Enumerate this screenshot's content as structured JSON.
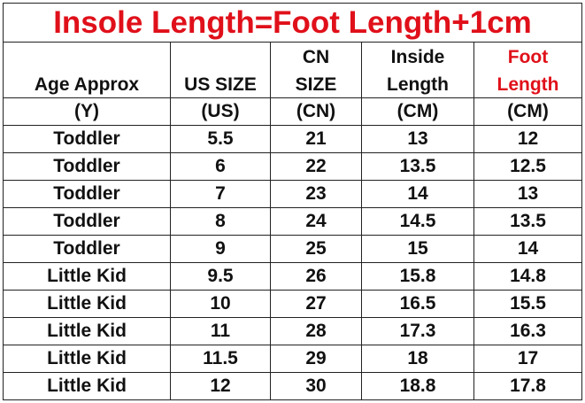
{
  "title": "Insole Length=Foot Length+1cm",
  "headers": [
    {
      "line1": "",
      "line2": "Age Approx",
      "unit": "(Y)"
    },
    {
      "line1": "",
      "line2": "US SIZE",
      "unit": "(US)"
    },
    {
      "line1": "CN",
      "line2": "SIZE",
      "unit": "(CN)"
    },
    {
      "line1": "Inside",
      "line2": "Length",
      "unit": "(CM)"
    },
    {
      "line1": "Foot",
      "line2": "Length",
      "unit": "(CM)"
    }
  ],
  "accent_color": "#e0101a",
  "rows": [
    [
      "Toddler",
      "5.5",
      "21",
      "13",
      "12"
    ],
    [
      "Toddler",
      "6",
      "22",
      "13.5",
      "12.5"
    ],
    [
      "Toddler",
      "7",
      "23",
      "14",
      "13"
    ],
    [
      "Toddler",
      "8",
      "24",
      "14.5",
      "13.5"
    ],
    [
      "Toddler",
      "9",
      "25",
      "15",
      "14"
    ],
    [
      "Little Kid",
      "9.5",
      "26",
      "15.8",
      "14.8"
    ],
    [
      "Little Kid",
      "10",
      "27",
      "16.5",
      "15.5"
    ],
    [
      "Little Kid",
      "11",
      "28",
      "17.3",
      "16.3"
    ],
    [
      "Little Kid",
      "11.5",
      "29",
      "18",
      "17"
    ],
    [
      "Little Kid",
      "12",
      "30",
      "18.8",
      "17.8"
    ]
  ]
}
